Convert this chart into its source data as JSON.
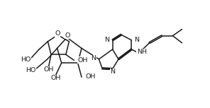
{
  "background": "#ffffff",
  "line_color": "#1a1a1a",
  "line_width": 1.1,
  "font_size": 6.8,
  "figsize": [
    2.96,
    1.53
  ],
  "dpi": 100,
  "xlim": [
    0,
    9.8
  ],
  "ylim": [
    0,
    5.1
  ]
}
